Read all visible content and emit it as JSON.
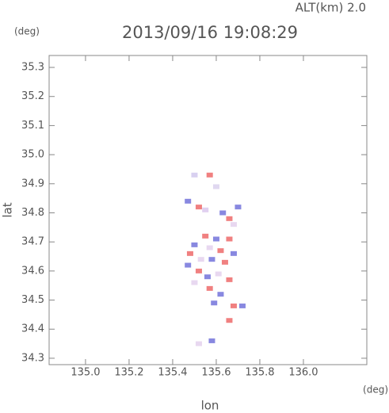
{
  "chart_data": {
    "type": "scatter",
    "title": "2013/09/16 19:08:29",
    "annotation": "ALT(km) 2.0",
    "y_unit": "(deg)",
    "x_unit": "(deg)",
    "xlabel": "lon",
    "ylabel": "lat",
    "xlim": [
      134.833,
      136.291
    ],
    "ylim": [
      34.278,
      35.341
    ],
    "xticks": [
      {
        "value": 135.0,
        "label": "135.0"
      },
      135.2,
      135.4,
      135.6,
      135.8,
      {
        "value": 136.0,
        "label": "136.0"
      }
    ],
    "yticks": [
      34.3,
      34.4,
      34.5,
      34.6,
      34.7,
      34.8,
      34.9,
      {
        "value": 35.0,
        "label": "35.0"
      },
      35.1,
      35.2,
      35.3
    ],
    "x": [
      135.5,
      135.57,
      135.47,
      135.52,
      135.55,
      135.6,
      135.63,
      135.66,
      135.7,
      135.68,
      135.55,
      135.6,
      135.66,
      135.5,
      135.57,
      135.62,
      135.68,
      135.48,
      135.53,
      135.58,
      135.64,
      135.47,
      135.52,
      135.56,
      135.61,
      135.66,
      135.5,
      135.57,
      135.62,
      135.59,
      135.68,
      135.72,
      135.66,
      135.58,
      135.52
    ],
    "y": [
      34.93,
      34.93,
      34.84,
      34.82,
      34.81,
      34.89,
      34.8,
      34.78,
      34.82,
      34.76,
      34.72,
      34.71,
      34.71,
      34.69,
      34.68,
      34.67,
      34.66,
      34.66,
      34.64,
      34.64,
      34.63,
      34.62,
      34.6,
      34.58,
      34.59,
      34.57,
      34.56,
      34.54,
      34.52,
      34.49,
      34.48,
      34.48,
      34.43,
      34.36,
      34.35
    ],
    "colors": [
      "#d8d0f0",
      "#f08080",
      "#8888e0",
      "#f08080",
      "#e0d0f0",
      "#e0d8f0",
      "#8888e0",
      "#f08080",
      "#8888e0",
      "#e8d8f0",
      "#f08080",
      "#8888e0",
      "#f08080",
      "#8888e0",
      "#e8d8f0",
      "#f08080",
      "#8888e0",
      "#f08080",
      "#e8d8f0",
      "#8888e0",
      "#f08080",
      "#8888e0",
      "#f08080",
      "#8888e0",
      "#e8d8f0",
      "#f08080",
      "#e8d8f0",
      "#f08080",
      "#8888e0",
      "#8888e0",
      "#f08080",
      "#8888e0",
      "#f08080",
      "#8888e0",
      "#e8d8f0"
    ]
  }
}
